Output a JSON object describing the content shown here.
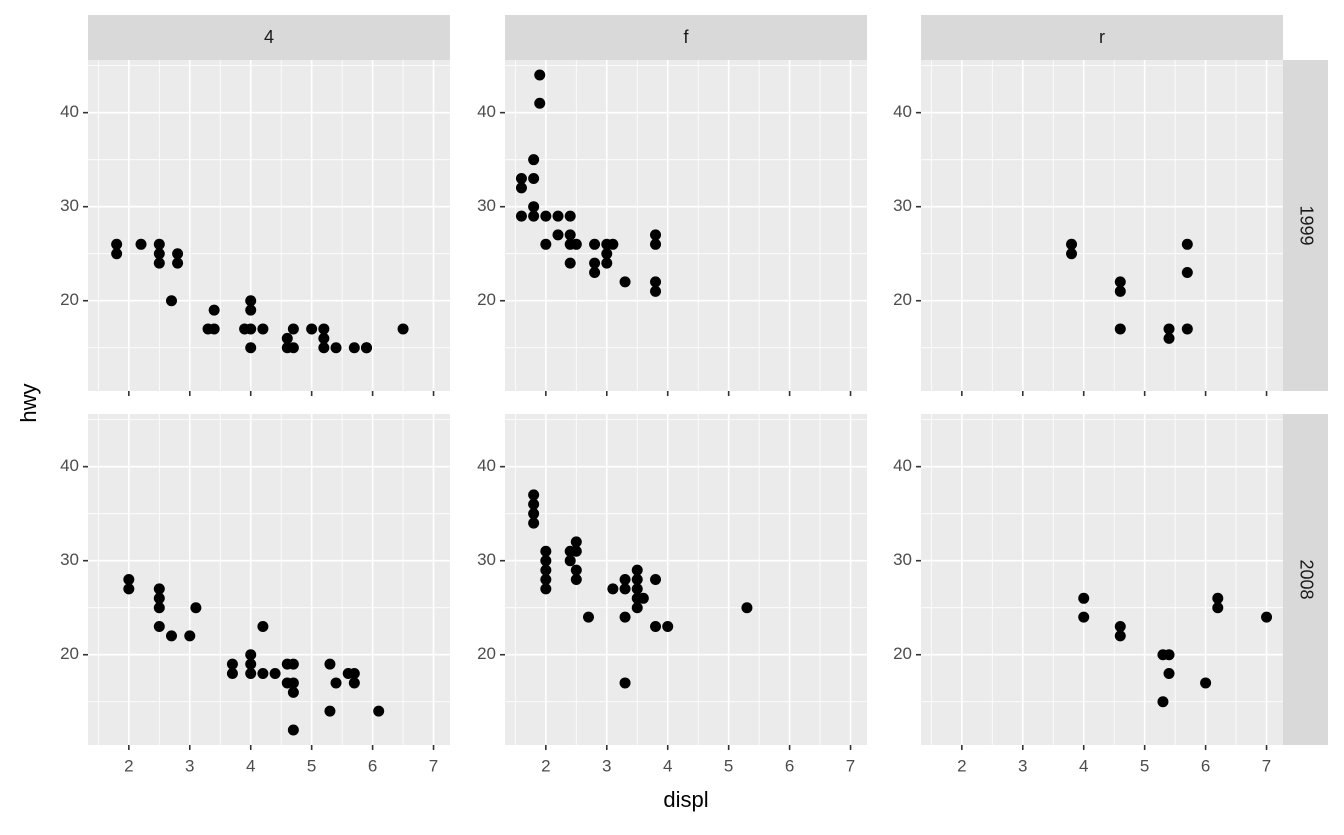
{
  "chart_data": {
    "type": "scatter",
    "x_label": "displ",
    "y_label": "hwy",
    "col_facets": [
      "4",
      "f",
      "r"
    ],
    "row_facets": [
      "1999",
      "2008"
    ],
    "xlim": [
      1.33,
      7.27
    ],
    "ylim": [
      10.4,
      45.6
    ],
    "xticks": [
      2,
      3,
      4,
      5,
      6,
      7
    ],
    "yticks": [
      20,
      30,
      40
    ],
    "grid": true,
    "color": "#000000",
    "panels": [
      [
        {
          "x": [
            1.8,
            1.8,
            2.2,
            2.5,
            2.5,
            2.5,
            2.8,
            2.8,
            2.7,
            3.3,
            3.4,
            3.4,
            4,
            4,
            3.9,
            4,
            4.2,
            4,
            4.6,
            4.6,
            4.7,
            4.7,
            5,
            5.2,
            5.2,
            5.2,
            5.4,
            5.7,
            5.9,
            5.9,
            6.5
          ],
          "values": [
            26,
            25,
            26,
            26,
            25,
            24,
            25,
            24,
            20,
            17,
            17,
            19,
            20,
            19,
            17,
            17,
            17,
            15,
            16,
            15,
            15,
            17,
            17,
            17,
            16,
            15,
            15,
            15,
            15,
            15,
            17
          ]
        },
        {
          "x": [
            1.9,
            1.9,
            1.8,
            1.8,
            1.6,
            1.6,
            1.6,
            1.8,
            1.8,
            2,
            2.2,
            2.4,
            2,
            2.2,
            2.4,
            2.4,
            2.5,
            2.4,
            2.8,
            2.8,
            2.8,
            3,
            3.1,
            3,
            3,
            3.3,
            3.8,
            3.8,
            3.8,
            3.8
          ],
          "values": [
            44,
            41,
            35,
            33,
            33,
            32,
            29,
            30,
            29,
            29,
            29,
            29,
            26,
            27,
            27,
            26,
            26,
            24,
            26,
            24,
            23,
            26,
            26,
            25,
            24,
            22,
            27,
            26,
            22,
            21
          ]
        },
        {
          "x": [
            3.8,
            3.8,
            4.6,
            4.6,
            4.6,
            5.4,
            5.4,
            5.7,
            5.7,
            5.7
          ],
          "values": [
            26,
            25,
            22,
            21,
            17,
            17,
            16,
            26,
            23,
            17
          ]
        }
      ],
      [
        {
          "x": [
            2,
            2,
            2.5,
            2.5,
            2.5,
            2.5,
            2.7,
            3,
            3.1,
            3.7,
            3.7,
            4,
            4,
            4,
            4.2,
            4.2,
            4.4,
            4.6,
            4.7,
            4.6,
            4.7,
            4.7,
            4.7,
            5.3,
            5.4,
            5.3,
            5.6,
            5.7,
            5.7,
            6.1
          ],
          "values": [
            28,
            27,
            27,
            26,
            25,
            23,
            22,
            22,
            25,
            19,
            18,
            20,
            19,
            18,
            23,
            18,
            18,
            19,
            19,
            17,
            17,
            16,
            12,
            19,
            17,
            14,
            18,
            18,
            17,
            14
          ]
        },
        {
          "x": [
            1.8,
            1.8,
            1.8,
            1.8,
            2,
            2,
            2,
            2,
            2,
            2.4,
            2.4,
            2.5,
            2.5,
            2.5,
            2.5,
            2.7,
            3.1,
            3.3,
            3.3,
            3.3,
            3.3,
            3.5,
            3.5,
            3.5,
            3.5,
            3.5,
            3.6,
            3.8,
            3.8,
            4,
            5.3
          ],
          "values": [
            37,
            36,
            35,
            34,
            31,
            30,
            29,
            28,
            27,
            31,
            30,
            32,
            31,
            29,
            28,
            24,
            27,
            28,
            27,
            24,
            17,
            29,
            28,
            27,
            26,
            25,
            26,
            28,
            23,
            23,
            25
          ]
        },
        {
          "x": [
            4,
            4,
            4.6,
            4.6,
            5.3,
            5.4,
            5.3,
            5.4,
            6,
            6.2,
            6.2,
            7
          ],
          "values": [
            26,
            24,
            23,
            22,
            20,
            20,
            15,
            18,
            17,
            26,
            25,
            24
          ]
        }
      ]
    ]
  }
}
